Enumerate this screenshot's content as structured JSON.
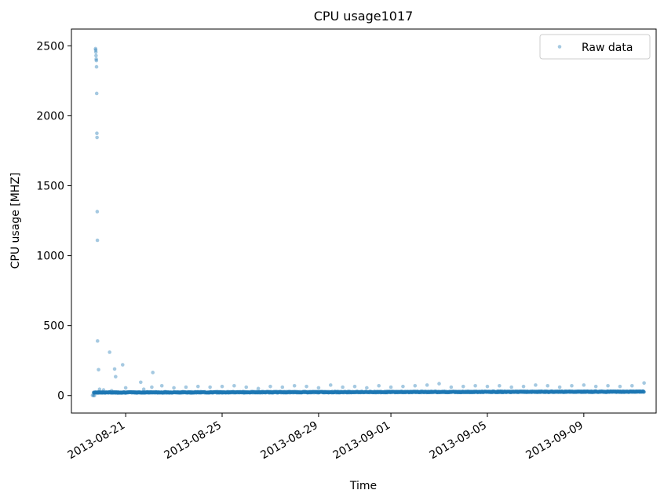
{
  "chart_data": {
    "type": "scatter",
    "title": "CPU usage1017",
    "xlabel": "Time",
    "ylabel": "CPU usage [MHZ]",
    "xlim": [
      "2013-08-18T18:00",
      "2013-09-12T00:00"
    ],
    "ylim": [
      -125,
      2620
    ],
    "x_ticks": [
      "2013-08-21",
      "2013-08-25",
      "2013-08-29",
      "2013-09-01",
      "2013-09-05",
      "2013-09-09"
    ],
    "y_ticks": [
      0,
      500,
      1000,
      1500,
      2000,
      2500
    ],
    "legend": {
      "position": "top-right",
      "entries": [
        "Raw data"
      ]
    },
    "grid": false,
    "marker_color": "#1f77b4",
    "marker_opacity": 0.4,
    "baseline": {
      "start": "2013-08-19T16:00",
      "end": "2013-09-11T12:00",
      "value_range": [
        18,
        30
      ],
      "note": "dense band of thousands of raw samples"
    },
    "series": [
      {
        "name": "Raw data",
        "points": [
          [
            "2013-08-19T15:00",
            2
          ],
          [
            "2013-08-19T16:00",
            0
          ],
          [
            "2013-08-19T17:00",
            1
          ],
          [
            "2013-08-19T18:00",
            2480
          ],
          [
            "2013-08-19T18:10",
            2470
          ],
          [
            "2013-08-19T18:20",
            2455
          ],
          [
            "2013-08-19T18:30",
            2430
          ],
          [
            "2013-08-19T18:40",
            2405
          ],
          [
            "2013-08-19T18:50",
            2395
          ],
          [
            "2013-08-19T19:00",
            2350
          ],
          [
            "2013-08-19T19:10",
            2160
          ],
          [
            "2013-08-19T19:20",
            1875
          ],
          [
            "2013-08-19T19:30",
            1845
          ],
          [
            "2013-08-19T19:40",
            1315
          ],
          [
            "2013-08-19T19:50",
            1110
          ],
          [
            "2013-08-19T20:00",
            390
          ],
          [
            "2013-08-19T21:00",
            185
          ],
          [
            "2013-08-20T08:00",
            310
          ],
          [
            "2013-08-20T13:00",
            190
          ],
          [
            "2013-08-20T14:00",
            135
          ],
          [
            "2013-08-20T21:00",
            220
          ],
          [
            "2013-08-22T03:00",
            165
          ],
          [
            "2013-08-21T15:00",
            95
          ],
          [
            "2013-08-19T22:00",
            45
          ],
          [
            "2013-08-20T02:00",
            40
          ],
          [
            "2013-08-20T10:00",
            35
          ],
          [
            "2013-08-21T00:00",
            55
          ],
          [
            "2013-08-21T18:00",
            45
          ],
          [
            "2013-08-22T02:00",
            60
          ],
          [
            "2013-08-22T12:00",
            70
          ],
          [
            "2013-08-23T00:00",
            55
          ],
          [
            "2013-08-23T12:00",
            60
          ],
          [
            "2013-08-24T00:00",
            65
          ],
          [
            "2013-08-24T12:00",
            60
          ],
          [
            "2013-08-25T00:00",
            65
          ],
          [
            "2013-08-25T12:00",
            70
          ],
          [
            "2013-08-26T00:00",
            60
          ],
          [
            "2013-08-26T12:00",
            50
          ],
          [
            "2013-08-27T00:00",
            65
          ],
          [
            "2013-08-27T12:00",
            60
          ],
          [
            "2013-08-28T00:00",
            70
          ],
          [
            "2013-08-28T12:00",
            65
          ],
          [
            "2013-08-29T00:00",
            55
          ],
          [
            "2013-08-29T12:00",
            75
          ],
          [
            "2013-08-30T00:00",
            60
          ],
          [
            "2013-08-30T12:00",
            65
          ],
          [
            "2013-08-31T00:00",
            55
          ],
          [
            "2013-08-31T12:00",
            70
          ],
          [
            "2013-09-01T00:00",
            60
          ],
          [
            "2013-09-01T12:00",
            65
          ],
          [
            "2013-09-02T00:00",
            70
          ],
          [
            "2013-09-02T12:00",
            75
          ],
          [
            "2013-09-03T00:00",
            85
          ],
          [
            "2013-09-03T12:00",
            60
          ],
          [
            "2013-09-04T00:00",
            65
          ],
          [
            "2013-09-04T12:00",
            70
          ],
          [
            "2013-09-05T00:00",
            65
          ],
          [
            "2013-09-05T12:00",
            70
          ],
          [
            "2013-09-06T00:00",
            60
          ],
          [
            "2013-09-06T12:00",
            65
          ],
          [
            "2013-09-07T00:00",
            75
          ],
          [
            "2013-09-07T12:00",
            70
          ],
          [
            "2013-09-08T00:00",
            60
          ],
          [
            "2013-09-08T12:00",
            70
          ],
          [
            "2013-09-09T00:00",
            75
          ],
          [
            "2013-09-09T12:00",
            65
          ],
          [
            "2013-09-10T00:00",
            70
          ],
          [
            "2013-09-10T12:00",
            65
          ],
          [
            "2013-09-11T00:00",
            70
          ],
          [
            "2013-09-11T12:00",
            90
          ]
        ]
      }
    ]
  }
}
